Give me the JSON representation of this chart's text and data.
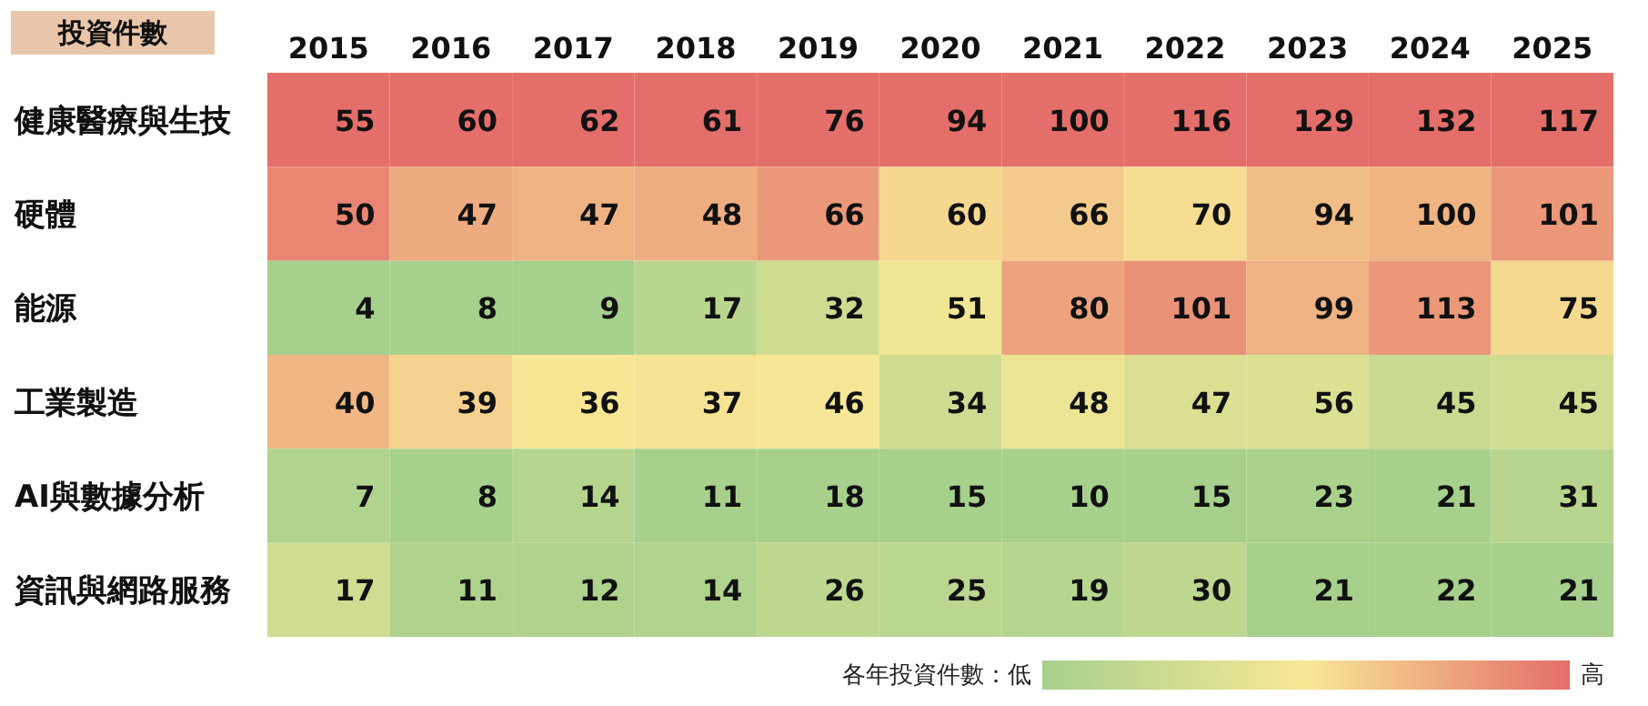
{
  "chart_data": {
    "type": "heatmap",
    "title": "投資件數",
    "categories": [
      "2015",
      "2016",
      "2017",
      "2018",
      "2019",
      "2020",
      "2021",
      "2022",
      "2023",
      "2024",
      "2025"
    ],
    "y_categories": [
      "健康醫療與生技",
      "硬體",
      "能源",
      "工業製造",
      "AI與數據分析",
      "資訊與網路服務"
    ],
    "cells": [
      [
        55,
        60,
        62,
        61,
        76,
        94,
        100,
        116,
        129,
        132,
        117
      ],
      [
        50,
        47,
        47,
        48,
        66,
        60,
        66,
        70,
        94,
        100,
        101
      ],
      [
        4,
        8,
        9,
        17,
        32,
        51,
        80,
        101,
        99,
        113,
        75
      ],
      [
        40,
        39,
        36,
        37,
        46,
        34,
        48,
        47,
        56,
        45,
        45
      ],
      [
        7,
        8,
        14,
        11,
        18,
        15,
        10,
        15,
        23,
        21,
        31
      ],
      [
        17,
        11,
        12,
        14,
        26,
        25,
        19,
        30,
        21,
        22,
        21
      ]
    ],
    "data_labels": true,
    "annotations": [
      "各年投資件數：低",
      "高"
    ]
  }
}
